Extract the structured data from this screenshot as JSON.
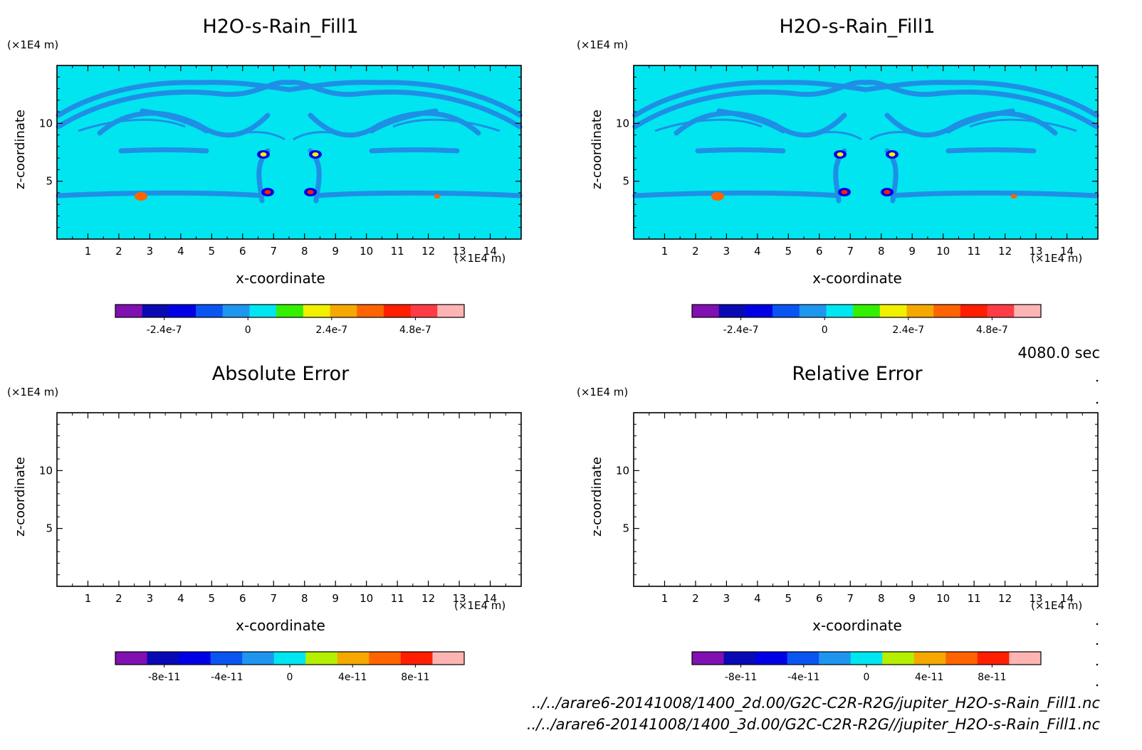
{
  "figure": {
    "time_label": "4080.0 sec",
    "file_paths": [
      "../../arare6-20141008/1400_2d.00/G2C-C2R-R2G/jupiter_H2O-s-Rain_Fill1.nc",
      "../../arare6-20141008/1400_3d.00/G2C-C2R-R2G//jupiter_H2O-s-Rain_Fill1.nc"
    ],
    "colors": {
      "fill_background": "#00e5f0",
      "fill_contour": "#1f8fe6"
    }
  },
  "chart_data": [
    {
      "type": "heatmap",
      "title": "H2O-s-Rain_Fill1",
      "xlabel": "x-coordinate",
      "ylabel": "z-coordinate",
      "x_unit": "(×1E4 m)",
      "y_unit": "(×1E4 m)",
      "xlim": [
        0,
        15
      ],
      "ylim": [
        0,
        15
      ],
      "xticks": [
        "1",
        "2",
        "3",
        "4",
        "5",
        "6",
        "7",
        "8",
        "9",
        "10",
        "11",
        "12",
        "13",
        "14"
      ],
      "yticks": [
        "5",
        "10"
      ],
      "filled": true,
      "colorbar": {
        "colors": [
          "#8010b0",
          "#0a0ab4",
          "#0000e6",
          "#0a55f2",
          "#1e96f0",
          "#00e6f0",
          "#32f000",
          "#f0f000",
          "#f5a800",
          "#ff6400",
          "#ff1e00",
          "#ff3c46",
          "#ffb4b4"
        ],
        "tick_labels": [
          "-2.4e-7",
          "0",
          "2.4e-7",
          "4.8e-7"
        ]
      }
    },
    {
      "type": "heatmap",
      "title": "H2O-s-Rain_Fill1",
      "xlabel": "x-coordinate",
      "ylabel": "z-coordinate",
      "x_unit": "(×1E4 m)",
      "y_unit": "(×1E4 m)",
      "xlim": [
        0,
        15
      ],
      "ylim": [
        0,
        15
      ],
      "xticks": [
        "1",
        "2",
        "3",
        "4",
        "5",
        "6",
        "7",
        "8",
        "9",
        "10",
        "11",
        "12",
        "13",
        "14"
      ],
      "yticks": [
        "5",
        "10"
      ],
      "filled": true,
      "colorbar": {
        "colors": [
          "#8010b0",
          "#0a0ab4",
          "#0000e6",
          "#0a55f2",
          "#1e96f0",
          "#00e6f0",
          "#32f000",
          "#f0f000",
          "#f5a800",
          "#ff6400",
          "#ff1e00",
          "#ff3c46",
          "#ffb4b4"
        ],
        "tick_labels": [
          "-2.4e-7",
          "0",
          "2.4e-7",
          "4.8e-7"
        ]
      }
    },
    {
      "type": "heatmap",
      "title": "Absolute Error",
      "xlabel": "x-coordinate",
      "ylabel": "z-coordinate",
      "x_unit": "(×1E4 m)",
      "y_unit": "(×1E4 m)",
      "xlim": [
        0,
        15
      ],
      "ylim": [
        0,
        15
      ],
      "xticks": [
        "1",
        "2",
        "3",
        "4",
        "5",
        "6",
        "7",
        "8",
        "9",
        "10",
        "11",
        "12",
        "13",
        "14"
      ],
      "yticks": [
        "5",
        "10"
      ],
      "filled": false,
      "colorbar": {
        "colors": [
          "#8010b0",
          "#0a0ab4",
          "#0000e6",
          "#0a55f2",
          "#1e96f0",
          "#00e6f0",
          "#b4f000",
          "#f5a800",
          "#ff6400",
          "#ff1e00",
          "#ffb4b4"
        ],
        "tick_labels": [
          "-8e-11",
          "-4e-11",
          "0",
          "4e-11",
          "8e-11"
        ]
      }
    },
    {
      "type": "heatmap",
      "title": "Relative Error",
      "xlabel": "x-coordinate",
      "ylabel": "z-coordinate",
      "x_unit": "(×1E4 m)",
      "y_unit": "(×1E4 m)",
      "xlim": [
        0,
        15
      ],
      "ylim": [
        0,
        15
      ],
      "xticks": [
        "1",
        "2",
        "3",
        "4",
        "5",
        "6",
        "7",
        "8",
        "9",
        "10",
        "11",
        "12",
        "13",
        "14"
      ],
      "yticks": [
        "5",
        "10"
      ],
      "filled": false,
      "colorbar": {
        "colors": [
          "#8010b0",
          "#0a0ab4",
          "#0000e6",
          "#0a55f2",
          "#1e96f0",
          "#00e6f0",
          "#b4f000",
          "#f5a800",
          "#ff6400",
          "#ff1e00",
          "#ffb4b4"
        ],
        "tick_labels": [
          "-8e-11",
          "-4e-11",
          "0",
          "4e-11",
          "8e-11"
        ]
      }
    }
  ]
}
